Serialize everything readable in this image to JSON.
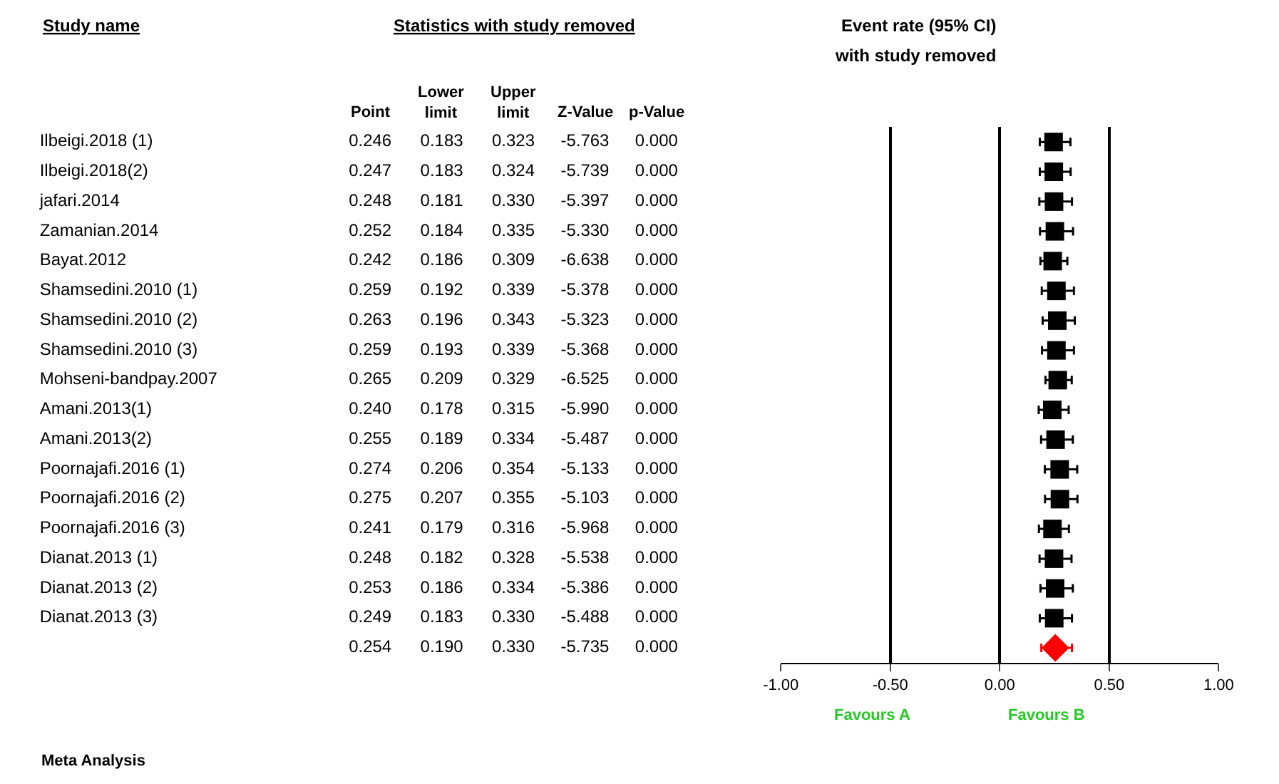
{
  "chart_data": [
    {
      "type": "other",
      "title": "Statistics with study removed",
      "ylabel": "Study name",
      "categories": [
        "Point",
        "Lower limit",
        "Upper limit",
        "Z-Value",
        "p-Value"
      ],
      "y_categories": [
        "Ilbeigi.2018 (1)",
        "Ilbeigi.2018(2)",
        "jafari.2014",
        "Zamanian.2014",
        "Bayat.2012",
        "Shamsedini.2010 (1)",
        "Shamsedini.2010 (2)",
        "Shamsedini.2010 (3)",
        "Mohseni-bandpay.2007",
        "Amani.2013(1)",
        "Amani.2013(2)",
        "Poornajafi.2016 (1)",
        "Poornajafi.2016 (2)",
        "Poornajafi.2016 (3)",
        "Dianat.2013 (1)",
        "Dianat.2013 (2)",
        "Dianat.2013 (3)",
        null
      ],
      "annotations": [
        "Meta Analysis",
        "0.246",
        "0.183",
        "0.323",
        "-5.763",
        "0.000",
        "0.247",
        "0.183",
        "0.324",
        "-5.739",
        "0.000",
        "0.248",
        "0.181",
        "0.330",
        "-5.397",
        "0.000",
        "0.252",
        "0.184",
        "0.335",
        "-5.330",
        "0.000",
        "0.242",
        "0.186",
        "0.309",
        "-6.638",
        "0.000",
        "0.259",
        "0.192",
        "0.339",
        "-5.378",
        "0.000",
        "0.263",
        "0.196",
        "0.343",
        "-5.323",
        "0.000",
        "0.259",
        "0.193",
        "0.339",
        "-5.368",
        "0.000",
        "0.265",
        "0.209",
        "0.329",
        "-6.525",
        "0.000",
        "0.240",
        "0.178",
        "0.315",
        "-5.990",
        "0.000",
        "0.255",
        "0.189",
        "0.334",
        "-5.487",
        "0.000",
        "0.274",
        "0.206",
        "0.354",
        "-5.133",
        "0.000",
        "0.275",
        "0.207",
        "0.355",
        "-5.103",
        "0.000",
        "0.241",
        "0.179",
        "0.316",
        "-5.968",
        "0.000",
        "0.248",
        "0.182",
        "0.328",
        "-5.538",
        "0.000",
        "0.253",
        "0.186",
        "0.334",
        "-5.386",
        "0.000",
        "0.249",
        "0.183",
        "0.330",
        "-5.488",
        "0.000",
        "0.254",
        "0.190",
        "0.330",
        "-5.735",
        "0.000"
      ]
    },
    {
      "type": "scatter",
      "orientation": "horizontal",
      "title": "Event rate (95% CI)",
      "subtitle": "with study removed",
      "categories": [
        null,
        null,
        null,
        null,
        null,
        null,
        null,
        null,
        null,
        null,
        null,
        null,
        null,
        null,
        null,
        null,
        null,
        null
      ],
      "series": [
        {
          "color": "#000000",
          "marker": "square",
          "values": [
            0.246,
            0.247,
            0.248,
            0.252,
            0.242,
            0.259,
            0.263,
            0.259,
            0.265,
            0.24,
            0.255,
            0.274,
            0.275,
            0.241,
            0.248,
            0.253,
            0.249,
            null
          ],
          "errors": [
            [
              0.183,
              0.323
            ],
            [
              0.183,
              0.324
            ],
            [
              0.181,
              0.33
            ],
            [
              0.184,
              0.335
            ],
            [
              0.186,
              0.309
            ],
            [
              0.192,
              0.339
            ],
            [
              0.196,
              0.343
            ],
            [
              0.193,
              0.339
            ],
            [
              0.209,
              0.329
            ],
            [
              0.178,
              0.315
            ],
            [
              0.189,
              0.334
            ],
            [
              0.206,
              0.354
            ],
            [
              0.207,
              0.355
            ],
            [
              0.179,
              0.316
            ],
            [
              0.182,
              0.328
            ],
            [
              0.186,
              0.334
            ],
            [
              0.183,
              0.33
            ],
            null
          ]
        },
        {
          "color": "#ff0000",
          "marker": "diamond",
          "values": [
            null,
            null,
            null,
            null,
            null,
            null,
            null,
            null,
            null,
            null,
            null,
            null,
            null,
            null,
            null,
            null,
            null,
            0.254
          ],
          "errors": [
            null,
            null,
            null,
            null,
            null,
            null,
            null,
            null,
            null,
            null,
            null,
            null,
            null,
            null,
            null,
            null,
            null,
            [
              0.19,
              0.33
            ]
          ]
        }
      ],
      "xlim": [
        -1,
        1
      ],
      "xticks": [
        {
          "value": -1,
          "label": "-1.00"
        },
        {
          "value": -0.5,
          "label": "-0.50"
        },
        {
          "value": 0,
          "label": "0.00"
        },
        {
          "value": 0.5,
          "label": "0.50"
        },
        {
          "value": 1,
          "label": "1.00"
        }
      ],
      "grid": "x",
      "tick_labels": "x",
      "annotations": [
        "Favours A",
        "Favours B"
      ]
    }
  ]
}
